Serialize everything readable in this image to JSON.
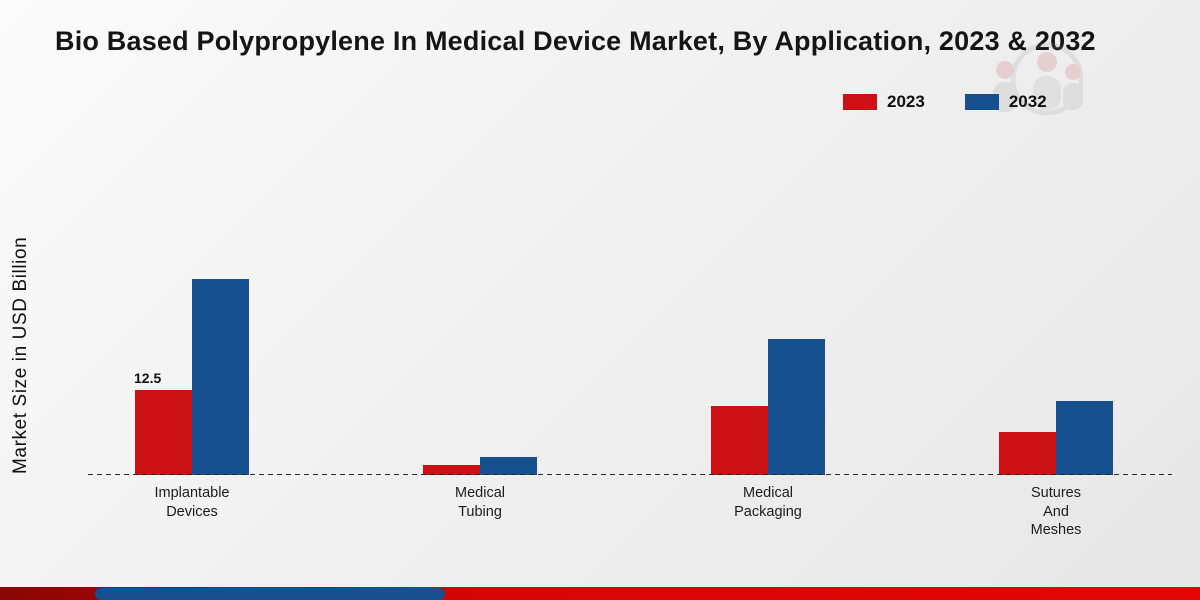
{
  "title": "Bio Based Polypropylene In Medical Device Market, By Application, 2023 & 2032",
  "y_axis_label": "Market Size in USD Billion",
  "legend": {
    "items": [
      {
        "label": "2023",
        "color": "#cc1115"
      },
      {
        "label": "2032",
        "color": "#16508f"
      }
    ]
  },
  "footer": {
    "band_red": "#d80505",
    "band_blue": "#16508f"
  },
  "chart_data": {
    "type": "bar",
    "title": "Bio Based Polypropylene In Medical Device Market, By Application, 2023 & 2032",
    "ylabel": "Market Size in USD Billion",
    "categories": [
      "Implantable\nDevices",
      "Medical\nTubing",
      "Medical\nPackaging",
      "Sutures\nAnd\nMeshes"
    ],
    "series": [
      {
        "name": "2023",
        "color": "#cc1115",
        "values": [
          12.5,
          1.5,
          10.2,
          6.3
        ]
      },
      {
        "name": "2032",
        "color": "#16508f",
        "values": [
          28.9,
          2.6,
          20.0,
          10.9
        ]
      }
    ],
    "ylim": [
      0,
      50
    ],
    "grid": false,
    "legend_position": "top-right",
    "baseline_style": "dashed",
    "data_labels": [
      {
        "series_index": 0,
        "category_index": 0,
        "text": "12.5"
      }
    ]
  }
}
